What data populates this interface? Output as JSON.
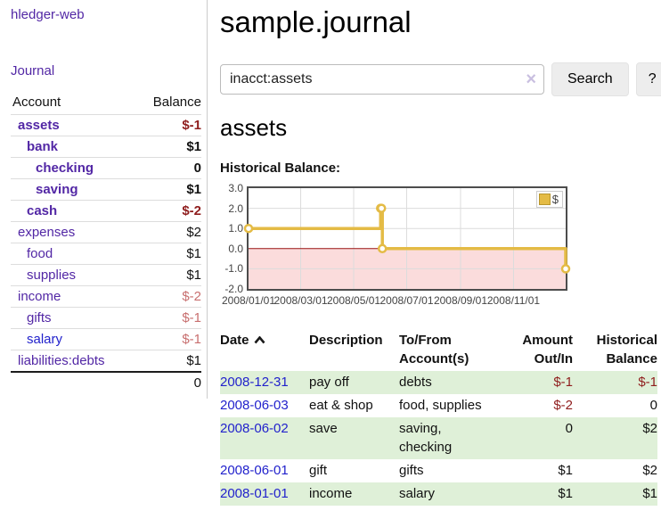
{
  "sidebar": {
    "app_title": "hledger-web",
    "journal_link": "Journal",
    "accounts_header": {
      "account": "Account",
      "balance": "Balance"
    },
    "accounts": [
      {
        "name": "assets",
        "depth": 0,
        "bold": true,
        "link_color": "purple",
        "balance": "$-1",
        "balance_style": "negative-strong"
      },
      {
        "name": "bank",
        "depth": 1,
        "bold": true,
        "link_color": "purple",
        "balance": "$1",
        "balance_style": "normal"
      },
      {
        "name": "checking",
        "depth": 2,
        "bold": true,
        "link_color": "purple",
        "balance": "0",
        "balance_style": "normal"
      },
      {
        "name": "saving",
        "depth": 2,
        "bold": true,
        "link_color": "purple",
        "balance": "$1",
        "balance_style": "normal"
      },
      {
        "name": "cash",
        "depth": 1,
        "bold": true,
        "link_color": "purple",
        "balance": "$-2",
        "balance_style": "negative-strong"
      },
      {
        "name": "expenses",
        "depth": 0,
        "bold": false,
        "link_color": "purple",
        "balance": "$2",
        "balance_style": "normal"
      },
      {
        "name": "food",
        "depth": 1,
        "bold": false,
        "link_color": "purple",
        "balance": "$1",
        "balance_style": "normal"
      },
      {
        "name": "supplies",
        "depth": 1,
        "bold": false,
        "link_color": "purple",
        "balance": "$1",
        "balance_style": "normal"
      },
      {
        "name": "income",
        "depth": 0,
        "bold": false,
        "link_color": "purple",
        "balance": "$-2",
        "balance_style": "negative-soft"
      },
      {
        "name": "gifts",
        "depth": 1,
        "bold": false,
        "link_color": "purple",
        "balance": "$-1",
        "balance_style": "negative-soft"
      },
      {
        "name": "salary",
        "depth": 1,
        "bold": false,
        "link_color": "blue",
        "balance": "$-1",
        "balance_style": "negative-soft"
      },
      {
        "name": "liabilities:debts",
        "depth": 0,
        "bold": false,
        "link_color": "purple",
        "balance": "$1",
        "balance_style": "normal"
      }
    ],
    "total": "0"
  },
  "main": {
    "title": "sample.journal",
    "search": {
      "value": "inacct:assets",
      "clear_icon": "×",
      "button_label": "Search",
      "help_label": "?"
    },
    "account_heading": "assets",
    "chart_label": "Historical Balance:"
  },
  "chart_data": {
    "type": "line",
    "title": "Historical Balance",
    "xlabel": "",
    "ylabel": "",
    "grid": true,
    "legend_position": "top-right",
    "legend": [
      {
        "label": "$",
        "color": "#e4bb45"
      }
    ],
    "x_domain": [
      "2008/01/01",
      "2008/12/31"
    ],
    "ylim": [
      -2.0,
      3.0
    ],
    "y_ticks": [
      3.0,
      2.0,
      1.0,
      0.0,
      -1.0,
      -2.0
    ],
    "x_ticks": [
      "2008/01/01",
      "2008/03/01",
      "2008/05/01",
      "2008/07/01",
      "2008/09/01",
      "2008/11/01"
    ],
    "series": [
      {
        "name": "$",
        "step": true,
        "points": [
          {
            "x": "2008/01/01",
            "y": 1
          },
          {
            "x": "2008/06/01",
            "y": 2
          },
          {
            "x": "2008/06/02",
            "y": 2
          },
          {
            "x": "2008/06/03",
            "y": 0
          },
          {
            "x": "2008/12/31",
            "y": -1
          }
        ]
      }
    ],
    "colors": {
      "line": "#e4bb45",
      "point_fill": "#ffffff",
      "negative_region": "#fbdcdc",
      "zero_line": "#991111",
      "grid": "#dcdcdc",
      "border": "#4d4d4d"
    }
  },
  "register": {
    "headers": {
      "date": "Date",
      "description": "Description",
      "tofrom": "To/From Account(s)",
      "amount": "Amount Out/In",
      "balance": "Historical Balance"
    },
    "rows": [
      {
        "date": "2008-12-31",
        "description": "pay off",
        "accounts": "debts",
        "amount": "$-1",
        "balance": "$-1",
        "shaded": true
      },
      {
        "date": "2008-06-03",
        "description": "eat & shop",
        "accounts": "food, supplies",
        "amount": "$-2",
        "balance": "0",
        "shaded": false
      },
      {
        "date": "2008-06-02",
        "description": "save",
        "accounts": "saving, checking",
        "amount": "0",
        "balance": "$2",
        "shaded": true
      },
      {
        "date": "2008-06-01",
        "description": "gift",
        "accounts": "gifts",
        "amount": "$1",
        "balance": "$2",
        "shaded": false
      },
      {
        "date": "2008-01-01",
        "description": "income",
        "accounts": "salary",
        "amount": "$1",
        "balance": "$1",
        "shaded": true
      }
    ]
  },
  "colors": {
    "link_purple": "#5227a5",
    "link_blue": "#2222cc",
    "negative_strong": "#8f1d1d",
    "negative_soft": "#c86f6f",
    "row_shade_green": "#dff0d8",
    "button_bg": "#ededed"
  }
}
